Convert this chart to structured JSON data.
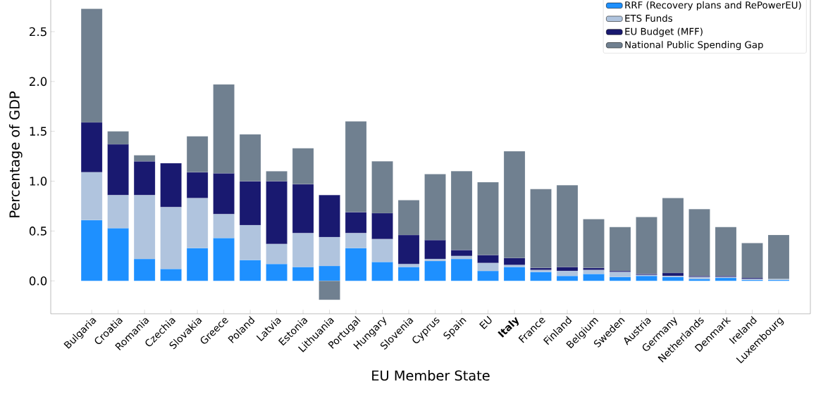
{
  "chart_data": {
    "type": "bar",
    "stacked": true,
    "xlabel": "EU Member State",
    "ylabel": "Percentage of GDP",
    "categories": [
      "Bulgaria",
      "Croatia",
      "Romania",
      "Czechia",
      "Slovakia",
      "Greece",
      "Poland",
      "Latvia",
      "Estonia",
      "Lithuania",
      "Portugal",
      "Hungary",
      "Slovenia",
      "Cyprus",
      "Spain",
      "EU",
      "**Italy**",
      "France",
      "Finland",
      "Belgium",
      "Sweden",
      "Austria",
      "Germany",
      "Netherlands",
      "Denmark",
      "Ireland",
      "Luxembourg"
    ],
    "series": [
      {
        "name": "RRF (Recovery plans and RePowerEU)",
        "color": "#1e90ff",
        "values": [
          0.61,
          0.53,
          0.22,
          0.12,
          0.33,
          0.43,
          0.21,
          0.17,
          0.14,
          0.15,
          0.33,
          0.19,
          0.14,
          0.2,
          0.22,
          0.1,
          0.14,
          0.09,
          0.05,
          0.07,
          0.04,
          0.05,
          0.04,
          0.02,
          0.03,
          0.01,
          0.01
        ]
      },
      {
        "name": "ETS Funds",
        "color": "#b0c4de",
        "values": [
          0.48,
          0.33,
          0.64,
          0.62,
          0.5,
          0.24,
          0.35,
          0.2,
          0.34,
          0.29,
          0.15,
          0.23,
          0.03,
          0.02,
          0.03,
          0.08,
          0.02,
          0.02,
          0.05,
          0.04,
          0.05,
          0.01,
          0.01,
          0.02,
          0.01,
          0.01,
          0.01
        ]
      },
      {
        "name": "EU Budget (MFF)",
        "color": "#191970",
        "values": [
          0.5,
          0.51,
          0.34,
          0.44,
          0.26,
          0.41,
          0.44,
          0.63,
          0.49,
          0.42,
          0.21,
          0.26,
          0.29,
          0.19,
          0.06,
          0.08,
          0.07,
          0.02,
          0.04,
          0.02,
          0.01,
          0.01,
          0.03,
          0.01,
          0.01,
          0.01,
          0
        ]
      },
      {
        "name": "National Public Spending Gap",
        "color": "#708090",
        "values": [
          1.14,
          0.13,
          0.06,
          0,
          0.36,
          0.89,
          0.47,
          0.1,
          0.36,
          -0.19,
          0.91,
          0.52,
          0.35,
          0.66,
          0.79,
          0.73,
          1.07,
          0.79,
          0.82,
          0.49,
          0.44,
          0.57,
          0.75,
          0.67,
          0.49,
          0.35,
          0.44
        ]
      }
    ],
    "ylim": [
      -0.33,
      2.86
    ],
    "yticks": [
      {
        "value": 0,
        "label": "0.0"
      },
      {
        "value": 0.5,
        "label": "0.5"
      },
      {
        "value": 1,
        "label": "1.0"
      },
      {
        "value": 1.5,
        "label": "1.5"
      },
      {
        "value": 2,
        "label": "2.0"
      },
      {
        "value": 2.5,
        "label": "2.5"
      }
    ],
    "legend": "top right"
  }
}
